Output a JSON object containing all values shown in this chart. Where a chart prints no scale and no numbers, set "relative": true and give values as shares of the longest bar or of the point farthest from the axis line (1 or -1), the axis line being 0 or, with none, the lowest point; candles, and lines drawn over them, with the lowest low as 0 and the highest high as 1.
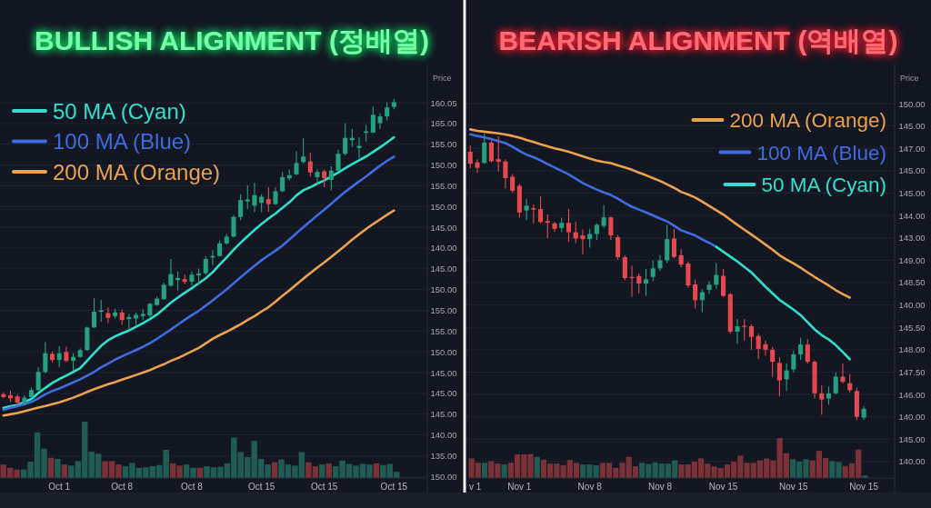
{
  "chart_data": [
    {
      "type": "candlestick",
      "relative": true,
      "title": "BULLISH ALIGNMENT (정배열)",
      "ylabel": "Price",
      "categories": [
        null,
        null,
        null,
        null,
        null,
        null,
        null,
        null,
        "Oct 1",
        null,
        null,
        null,
        null,
        null,
        null,
        null,
        null,
        "Oct 8",
        null,
        null,
        null,
        null,
        null,
        null,
        null,
        null,
        null,
        "Oct 8",
        null,
        null,
        null,
        null,
        null,
        null,
        null,
        null,
        null,
        "Oct 15",
        null,
        null,
        null,
        null,
        null,
        null,
        null,
        null,
        "Oct 15",
        null,
        null,
        null,
        null,
        null,
        null,
        null,
        null,
        null,
        "Oct 15"
      ],
      "ohlc": [
        [
          0.037,
          0.044,
          0.024,
          0.028
        ],
        [
          0.034,
          0.049,
          0.013,
          0.024
        ],
        [
          0.03,
          0.037,
          0.003,
          0.01
        ],
        [
          0.008,
          0.034,
          0,
          0.026
        ],
        [
          0.028,
          0.059,
          0.024,
          0.051
        ],
        [
          0.051,
          0.125,
          0.047,
          0.11
        ],
        [
          0.11,
          0.207,
          0.105,
          0.171
        ],
        [
          0.169,
          0.177,
          0.141,
          0.149
        ],
        [
          0.149,
          0.194,
          0.125,
          0.171
        ],
        [
          0.175,
          0.192,
          0.141,
          0.146
        ],
        [
          0.146,
          0.171,
          0.112,
          0.159
        ],
        [
          0.159,
          0.187,
          0.156,
          0.181
        ],
        [
          0.181,
          0.258,
          0.179,
          0.255
        ],
        [
          0.255,
          0.35,
          0.253,
          0.306
        ],
        [
          0.306,
          0.345,
          0.274,
          0.311
        ],
        [
          0.302,
          0.32,
          0.269,
          0.286
        ],
        [
          0.292,
          0.316,
          0.284,
          0.304
        ],
        [
          0.304,
          0.314,
          0.263,
          0.279
        ],
        [
          0.282,
          0.299,
          0.251,
          0.289
        ],
        [
          0.284,
          0.304,
          0.263,
          0.296
        ],
        [
          0.292,
          0.314,
          0.279,
          0.299
        ],
        [
          0.294,
          0.335,
          0.289,
          0.332
        ],
        [
          0.328,
          0.355,
          0.325,
          0.349
        ],
        [
          0.347,
          0.401,
          0.345,
          0.394
        ],
        [
          0.391,
          0.478,
          0.388,
          0.429
        ],
        [
          0.41,
          0.437,
          0.376,
          0.416
        ],
        [
          0.412,
          0.427,
          0.396,
          0.404
        ],
        [
          0.404,
          0.437,
          0.391,
          0.427
        ],
        [
          0.425,
          0.447,
          0.396,
          0.431
        ],
        [
          0.432,
          0.488,
          0.427,
          0.478
        ],
        [
          0.483,
          0.508,
          0.458,
          0.488
        ],
        [
          0.488,
          0.539,
          0.486,
          0.529
        ],
        [
          0.529,
          0.559,
          0.524,
          0.551
        ],
        [
          0.551,
          0.621,
          0.549,
          0.615
        ],
        [
          0.615,
          0.689,
          0.605,
          0.67
        ],
        [
          0.666,
          0.718,
          0.641,
          0.672
        ],
        [
          0.652,
          0.727,
          0.631,
          0.686
        ],
        [
          0.661,
          0.689,
          0.631,
          0.681
        ],
        [
          0.673,
          0.712,
          0.631,
          0.657
        ],
        [
          0.657,
          0.712,
          0.654,
          0.699
        ],
        [
          0.699,
          0.762,
          0.696,
          0.745
        ],
        [
          0.741,
          0.77,
          0.734,
          0.751
        ],
        [
          0.754,
          0.829,
          0.752,
          0.791
        ],
        [
          0.794,
          0.871,
          0.789,
          0.812
        ],
        [
          0.796,
          0.825,
          0.747,
          0.76
        ],
        [
          0.745,
          0.77,
          0.72,
          0.762
        ],
        [
          0.764,
          0.77,
          0.712,
          0.741
        ],
        [
          0.736,
          0.78,
          0.702,
          0.766
        ],
        [
          0.766,
          0.834,
          0.763,
          0.821
        ],
        [
          0.821,
          0.921,
          0.816,
          0.873
        ],
        [
          0.865,
          0.902,
          0.844,
          0.873
        ],
        [
          0.84,
          0.875,
          0.807,
          0.847
        ],
        [
          0.889,
          0.916,
          0.861,
          0.894
        ],
        [
          0.89,
          0.975,
          0.89,
          0.948
        ],
        [
          0.921,
          0.953,
          0.902,
          0.943
        ],
        [
          0.943,
          0.989,
          0.93,
          0.972
        ],
        [
          0.974,
          1,
          0.966,
          0.989
        ]
      ],
      "colors": [
        "#e5484f",
        "#e5484f",
        "#e5484f",
        "#26a17f",
        "#26a17f",
        "#26a17f",
        "#26a17f",
        "#e5484f",
        "#26a17f",
        "#e5484f",
        "#26a17f",
        "#26a17f",
        "#26a17f",
        "#26a17f",
        "#26a17f",
        "#e5484f",
        "#26a17f",
        "#e5484f",
        "#26a17f",
        "#26a17f",
        "#26a17f",
        "#26a17f",
        "#26a17f",
        "#26a17f",
        "#26a17f",
        "#26a17f",
        "#e5484f",
        "#26a17f",
        "#26a17f",
        "#26a17f",
        "#26a17f",
        "#26a17f",
        "#26a17f",
        "#26a17f",
        "#26a17f",
        "#26a17f",
        "#26a17f",
        "#26a17f",
        "#e5484f",
        "#26a17f",
        "#26a17f",
        "#26a17f",
        "#26a17f",
        "#26a17f",
        "#e5484f",
        "#26a17f",
        "#e5484f",
        "#26a17f",
        "#26a17f",
        "#26a17f",
        "#26a17f",
        "#26a17f",
        "#26a17f",
        "#26a17f",
        "#26a17f",
        "#26a17f",
        "#26a17f"
      ],
      "series": [
        {
          "name": "50 MA (Cyan)",
          "type": "line",
          "color": "#2fe0cc",
          "values": [
            -0.007,
            -0.002,
            0.002,
            0.012,
            0.022,
            0.041,
            0.058,
            0.074,
            0.087,
            0.098,
            0.11,
            0.122,
            0.147,
            0.171,
            0.195,
            0.213,
            0.226,
            0.236,
            0.245,
            0.257,
            0.269,
            0.282,
            0.297,
            0.316,
            0.336,
            0.352,
            0.368,
            0.383,
            0.399,
            0.415,
            0.435,
            0.46,
            0.483,
            0.508,
            0.531,
            0.552,
            0.573,
            0.592,
            0.61,
            0.626,
            0.645,
            0.663,
            0.685,
            0.702,
            0.712,
            0.724,
            0.734,
            0.747,
            0.76,
            0.774,
            0.787,
            0.8,
            0.812,
            0.827,
            0.842,
            0.858,
            0.875
          ]
        },
        {
          "name": "100 MA (Blue)",
          "type": "line",
          "color": "#3f6ae0",
          "values": [
            -0.014,
            -0.007,
            -0.002,
            0.005,
            0.012,
            0.024,
            0.037,
            0.048,
            0.056,
            0.066,
            0.076,
            0.086,
            0.098,
            0.11,
            0.125,
            0.137,
            0.15,
            0.161,
            0.171,
            0.181,
            0.192,
            0.204,
            0.218,
            0.233,
            0.248,
            0.264,
            0.28,
            0.295,
            0.309,
            0.326,
            0.343,
            0.361,
            0.379,
            0.399,
            0.418,
            0.437,
            0.456,
            0.474,
            0.49,
            0.505,
            0.522,
            0.542,
            0.562,
            0.582,
            0.601,
            0.62,
            0.639,
            0.658,
            0.678,
            0.697,
            0.714,
            0.731,
            0.747,
            0.765,
            0.782,
            0.798,
            0.812
          ]
        },
        {
          "name": "200 MA (Orange)",
          "type": "line",
          "color": "#eba24e",
          "values": [
            -0.032,
            -0.028,
            -0.024,
            -0.018,
            -0.012,
            -0.006,
            -0.001,
            0.005,
            0.011,
            0.018,
            0.026,
            0.035,
            0.045,
            0.054,
            0.062,
            0.07,
            0.077,
            0.085,
            0.092,
            0.1,
            0.108,
            0.116,
            0.126,
            0.135,
            0.146,
            0.155,
            0.166,
            0.177,
            0.188,
            0.203,
            0.218,
            0.23,
            0.241,
            0.253,
            0.265,
            0.279,
            0.292,
            0.307,
            0.321,
            0.339,
            0.358,
            0.376,
            0.395,
            0.414,
            0.432,
            0.45,
            0.467,
            0.485,
            0.503,
            0.522,
            0.541,
            0.559,
            0.576,
            0.592,
            0.607,
            0.622,
            0.636
          ]
        }
      ],
      "annotations": [
        "160.05",
        "165.00",
        "155.00",
        "150.00",
        "155.00",
        "150.00",
        "145.00",
        "140.00",
        "145.00",
        "150.00",
        "155.00",
        "155.00",
        "150.00",
        "145.00",
        "145.00",
        "145.00",
        "140.00",
        "135.00",
        "150.00"
      ],
      "grid": "y",
      "legend": "top left"
    },
    {
      "type": "bar",
      "relative": true,
      "categories": [
        null,
        null,
        null,
        null,
        null,
        null,
        null,
        null,
        null,
        null,
        null,
        null,
        null,
        null,
        null,
        null,
        null,
        null,
        null,
        null,
        null,
        null,
        null,
        null,
        null,
        null,
        null,
        null,
        null,
        null,
        null,
        null,
        null,
        null,
        null,
        null,
        null,
        null,
        null,
        null,
        null,
        null,
        null,
        null,
        null,
        null,
        null,
        null,
        null,
        null,
        null,
        null,
        null,
        null,
        null,
        null,
        null,
        null,
        null
      ],
      "values": [
        0.24,
        0.18,
        0.15,
        0.15,
        0.29,
        0.81,
        0.52,
        0.36,
        0.34,
        0.24,
        0.22,
        0.3,
        1,
        0.47,
        0.43,
        0.3,
        0.3,
        0.24,
        0.21,
        0.27,
        0.18,
        0.19,
        0.21,
        0.23,
        0.5,
        0.26,
        0.22,
        0.24,
        0.18,
        0.18,
        0.21,
        0.19,
        0.2,
        0.26,
        0.72,
        0.46,
        0.37,
        0.66,
        0.34,
        0.24,
        0.28,
        0.33,
        0.24,
        0.22,
        0.46,
        0.28,
        0.21,
        0.24,
        0.26,
        0.21,
        0.31,
        0.25,
        0.22,
        0.25,
        0.24,
        0.26,
        0.23,
        0.25,
        0.11
      ],
      "colors": [
        "#7a3238",
        "#7a3238",
        "#7a3238",
        "#1f5d54",
        "#1f5d54",
        "#1f5d54",
        "#1f5d54",
        "#7a3238",
        "#1f5d54",
        "#7a3238",
        "#1f5d54",
        "#1f5d54",
        "#1f5d54",
        "#1f5d54",
        "#1f5d54",
        "#7a3238",
        "#7a3238",
        "#7a3238",
        "#1f5d54",
        "#1f5d54",
        "#1f5d54",
        "#1f5d54",
        "#1f5d54",
        "#1f5d54",
        "#1f5d54",
        "#7a3238",
        "#7a3238",
        "#1f5d54",
        "#1f5d54",
        "#7a3238",
        "#1f5d54",
        "#1f5d54",
        "#1f5d54",
        "#1f5d54",
        "#1f5d54",
        "#1f5d54",
        "#1f5d54",
        "#1f5d54",
        "#1f5d54",
        "#1f5d54",
        "#7a3238",
        "#1f5d54",
        "#1f5d54",
        "#1f5d54",
        "#1f5d54",
        "#7a3238",
        "#7a3238",
        "#1f5d54",
        "#7a3238",
        "#1f5d54",
        "#1f5d54",
        "#1f5d54",
        "#1f5d54",
        "#1f5d54",
        "#1f5d54",
        "#7a3238",
        "#1f5d54",
        "#1f5d54",
        "#1f5d54"
      ]
    },
    {
      "type": "candlestick",
      "relative": true,
      "title": "BEARISH ALIGNMENT (역배열)",
      "ylabel": "Price",
      "categories": [
        "v 1",
        null,
        null,
        null,
        null,
        null,
        null,
        "Nov 1",
        null,
        null,
        null,
        null,
        null,
        null,
        null,
        null,
        null,
        "Nov 8",
        null,
        null,
        null,
        null,
        null,
        null,
        null,
        null,
        null,
        "Nov 8",
        null,
        null,
        null,
        null,
        null,
        null,
        null,
        null,
        "Nov 15",
        null,
        null,
        null,
        null,
        null,
        null,
        null,
        null,
        null,
        "Nov 15",
        null,
        null,
        null,
        null,
        null,
        null,
        null,
        null,
        null,
        "Nov 15"
      ],
      "ohlc": [
        [
          0.936,
          0.958,
          0.878,
          0.894
        ],
        [
          0.899,
          0.91,
          0.862,
          0.88
        ],
        [
          0.897,
          1,
          0.894,
          0.968
        ],
        [
          0.968,
          0.976,
          0.899,
          0.903
        ],
        [
          0.91,
          0.99,
          0.867,
          0.901
        ],
        [
          0.902,
          0.91,
          0.808,
          0.844
        ],
        [
          0.849,
          0.859,
          0.793,
          0.8
        ],
        [
          0.817,
          0.824,
          0.706,
          0.724
        ],
        [
          0.731,
          0.772,
          0.697,
          0.748
        ],
        [
          0.739,
          0.752,
          0.686,
          0.734
        ],
        [
          0.736,
          0.78,
          0.686,
          0.691
        ],
        [
          0.694,
          0.718,
          0.635,
          0.688
        ],
        [
          0.686,
          0.692,
          0.656,
          0.667
        ],
        [
          0.67,
          0.706,
          0.655,
          0.688
        ],
        [
          0.688,
          0.737,
          0.622,
          0.655
        ],
        [
          0.655,
          0.692,
          0.617,
          0.633
        ],
        [
          0.644,
          0.665,
          0.578,
          0.631
        ],
        [
          0.631,
          0.667,
          0.601,
          0.649
        ],
        [
          0.649,
          0.686,
          0.628,
          0.681
        ],
        [
          0.677,
          0.75,
          0.67,
          0.707
        ],
        [
          0.707,
          0.71,
          0.628,
          0.644
        ],
        [
          0.638,
          0.646,
          0.559,
          0.568
        ],
        [
          0.568,
          0.575,
          0.487,
          0.495
        ],
        [
          0.499,
          0.538,
          0.429,
          0.495
        ],
        [
          0.502,
          0.511,
          0.442,
          0.476
        ],
        [
          0.476,
          0.527,
          0.433,
          0.491
        ],
        [
          0.499,
          0.557,
          0.484,
          0.529
        ],
        [
          0.529,
          0.575,
          0.521,
          0.557
        ],
        [
          0.557,
          0.681,
          0.548,
          0.631
        ],
        [
          0.633,
          0.667,
          0.564,
          0.569
        ],
        [
          0.575,
          0.596,
          0.532,
          0.542
        ],
        [
          0.546,
          0.553,
          0.461,
          0.469
        ],
        [
          0.473,
          0.49,
          0.389,
          0.418
        ],
        [
          0.418,
          0.456,
          0.376,
          0.446
        ],
        [
          0.454,
          0.484,
          0.44,
          0.472
        ],
        [
          0.472,
          0.548,
          0.458,
          0.506
        ],
        [
          0.503,
          0.527,
          0.429,
          0.433
        ],
        [
          0.439,
          0.443,
          0.301,
          0.308
        ],
        [
          0.308,
          0.352,
          0.266,
          0.327
        ],
        [
          0.329,
          0.352,
          0.277,
          0.325
        ],
        [
          0.327,
          0.333,
          0.245,
          0.29
        ],
        [
          0.293,
          0.301,
          0.213,
          0.248
        ],
        [
          0.264,
          0.277,
          0.224,
          0.245
        ],
        [
          0.245,
          0.253,
          0.149,
          0.203
        ],
        [
          0.199,
          0.218,
          0.082,
          0.138
        ],
        [
          0.142,
          0.197,
          0.101,
          0.173
        ],
        [
          0.176,
          0.242,
          0.167,
          0.229
        ],
        [
          0.229,
          0.287,
          0.21,
          0.263
        ],
        [
          0.263,
          0.282,
          0.197,
          0.203
        ],
        [
          0.203,
          0.208,
          0.075,
          0.093
        ],
        [
          0.093,
          0.122,
          0.018,
          0.071
        ],
        [
          0.075,
          0.117,
          0.053,
          0.093
        ],
        [
          0.093,
          0.165,
          0.089,
          0.151
        ],
        [
          0.151,
          0.197,
          0.128,
          0.133
        ],
        [
          0.128,
          0.16,
          0.096,
          0.104
        ],
        [
          0.101,
          0.112,
          0,
          0.011
        ],
        [
          0.008,
          0.048,
          0,
          0.039
        ]
      ],
      "colors": [
        "#e5484f",
        "#e5484f",
        "#26a17f",
        "#e5484f",
        "#e5484f",
        "#e5484f",
        "#e5484f",
        "#e5484f",
        "#26a17f",
        "#e5484f",
        "#e5484f",
        "#e5484f",
        "#e5484f",
        "#26a17f",
        "#e5484f",
        "#e5484f",
        "#e5484f",
        "#26a17f",
        "#26a17f",
        "#26a17f",
        "#e5484f",
        "#e5484f",
        "#e5484f",
        "#e5484f",
        "#e5484f",
        "#26a17f",
        "#26a17f",
        "#26a17f",
        "#26a17f",
        "#e5484f",
        "#e5484f",
        "#e5484f",
        "#e5484f",
        "#26a17f",
        "#26a17f",
        "#26a17f",
        "#e5484f",
        "#e5484f",
        "#26a17f",
        "#e5484f",
        "#e5484f",
        "#e5484f",
        "#e5484f",
        "#e5484f",
        "#e5484f",
        "#26a17f",
        "#26a17f",
        "#26a17f",
        "#e5484f",
        "#e5484f",
        "#e5484f",
        "#26a17f",
        "#26a17f",
        "#e5484f",
        "#e5484f",
        "#e5484f",
        "#26a17f"
      ],
      "series": [
        {
          "name": "200 MA (Orange)",
          "type": "line",
          "color": "#eba24e",
          "values": [
            1.014,
            1.009,
            1.006,
            1.003,
            1,
            0.996,
            0.991,
            0.985,
            0.977,
            0.97,
            0.962,
            0.955,
            0.948,
            0.942,
            0.936,
            0.928,
            0.92,
            0.912,
            0.905,
            0.9,
            0.896,
            0.888,
            0.881,
            0.873,
            0.863,
            0.854,
            0.844,
            0.834,
            0.822,
            0.81,
            0.796,
            0.787,
            0.776,
            0.762,
            0.747,
            0.732,
            0.717,
            0.699,
            0.681,
            0.664,
            0.647,
            0.63,
            0.612,
            0.594,
            0.575,
            0.56,
            0.546,
            0.531,
            0.515,
            0.499,
            0.484,
            0.469,
            0.453,
            0.439,
            0.427,
            null,
            null
          ]
        },
        {
          "name": "100 MA (Blue)",
          "type": "line",
          "color": "#3f6ae0",
          "values": [
            0.997,
            0.991,
            0.986,
            0.98,
            0.973,
            0.966,
            0.954,
            0.939,
            0.926,
            0.917,
            0.906,
            0.893,
            0.881,
            0.869,
            0.857,
            0.842,
            0.827,
            0.815,
            0.804,
            0.794,
            0.785,
            0.772,
            0.757,
            0.744,
            0.734,
            0.724,
            0.714,
            0.703,
            0.693,
            0.678,
            0.662,
            0.653,
            0.644,
            0.63,
            0.618,
            0.604,
            null,
            null,
            null,
            null,
            null,
            null,
            null,
            null,
            null,
            null,
            null,
            null,
            null,
            null,
            null,
            null,
            null,
            null,
            null,
            null,
            null
          ]
        },
        {
          "name": "50 MA (Cyan)",
          "type": "line",
          "color": "#2fe0cc",
          "values": [
            null,
            null,
            null,
            null,
            null,
            null,
            null,
            null,
            null,
            null,
            null,
            null,
            null,
            null,
            null,
            null,
            null,
            null,
            null,
            null,
            null,
            null,
            null,
            null,
            null,
            null,
            null,
            null,
            null,
            null,
            null,
            null,
            null,
            null,
            null,
            0.604,
            0.587,
            0.57,
            0.553,
            0.534,
            0.515,
            0.49,
            0.465,
            0.442,
            0.419,
            0.402,
            0.385,
            0.366,
            0.341,
            0.316,
            0.296,
            0.281,
            0.261,
            0.237,
            0.212,
            null,
            null
          ]
        }
      ],
      "annotations": [
        "150.00",
        "145.00",
        "147.00",
        "145.00",
        "145.00",
        "144.00",
        "143.00",
        "149.00",
        "148.50",
        "140.00",
        "145.50",
        "148.00",
        "147.50",
        "146.00",
        "140.00",
        "145.00",
        "140.00"
      ],
      "grid": "y",
      "legend": "top right"
    },
    {
      "type": "bar",
      "relative": true,
      "categories": [
        null,
        null,
        null,
        null,
        null,
        null,
        null,
        null,
        null,
        null,
        null,
        null,
        null,
        null,
        null,
        null,
        null,
        null,
        null,
        null,
        null,
        null,
        null,
        null,
        null,
        null,
        null,
        null,
        null,
        null,
        null,
        null,
        null,
        null,
        null,
        null,
        null,
        null,
        null,
        null,
        null,
        null,
        null,
        null,
        null,
        null,
        null,
        null,
        null,
        null,
        null,
        null,
        null,
        null,
        null,
        null,
        null,
        null,
        null,
        null,
        null
      ],
      "values": [
        0.49,
        0.38,
        0.38,
        0.42,
        0.36,
        0.34,
        0.38,
        0.59,
        0.59,
        0.6,
        0.53,
        0.46,
        0.36,
        0.36,
        0.32,
        0.45,
        0.38,
        0.34,
        0.34,
        0.32,
        0.38,
        0.38,
        0.25,
        0.38,
        0.53,
        0.29,
        0.38,
        0.35,
        0.39,
        0.36,
        0.36,
        0.44,
        0.34,
        0.34,
        0.41,
        0.49,
        0.36,
        0.29,
        0.25,
        0.34,
        0.41,
        0.56,
        0.38,
        0.38,
        0.44,
        0.49,
        0.44,
        1,
        0.62,
        0.47,
        0.41,
        0.47,
        0.44,
        0.68,
        0.5,
        0.42,
        0.4,
        0.3,
        0.37,
        0.71,
        0.06
      ],
      "colors": [
        "#7a3238",
        "#7a3238",
        "#1f5d54",
        "#7a3238",
        "#7a3238",
        "#1f5d54",
        "#7a3238",
        "#7a3238",
        "#7a3238",
        "#7a3238",
        "#1f5d54",
        "#7a3238",
        "#7a3238",
        "#7a3238",
        "#7a3238",
        "#7a3238",
        "#7a3238",
        "#1f5d54",
        "#1f5d54",
        "#1f5d54",
        "#7a3238",
        "#7a3238",
        "#7a3238",
        "#7a3238",
        "#7a3238",
        "#7a3238",
        "#1f5d54",
        "#1f5d54",
        "#1f5d54",
        "#1f5d54",
        "#1f5d54",
        "#1f5d54",
        "#7a3238",
        "#7a3238",
        "#7a3238",
        "#7a3238",
        "#7a3238",
        "#7a3238",
        "#7a3238",
        "#7a3238",
        "#7a3238",
        "#7a3238",
        "#7a3238",
        "#7a3238",
        "#7a3238",
        "#7a3238",
        "#7a3238",
        "#7a3238",
        "#7a3238",
        "#1f5d54",
        "#1f5d54",
        "#1f5d54",
        "#7a3238",
        "#7a3238",
        "#7a3238",
        "#1f5d54",
        "#1f5d54",
        "#7a3238",
        "#7a3238",
        "#7a3238",
        "#1f5d54"
      ]
    }
  ]
}
